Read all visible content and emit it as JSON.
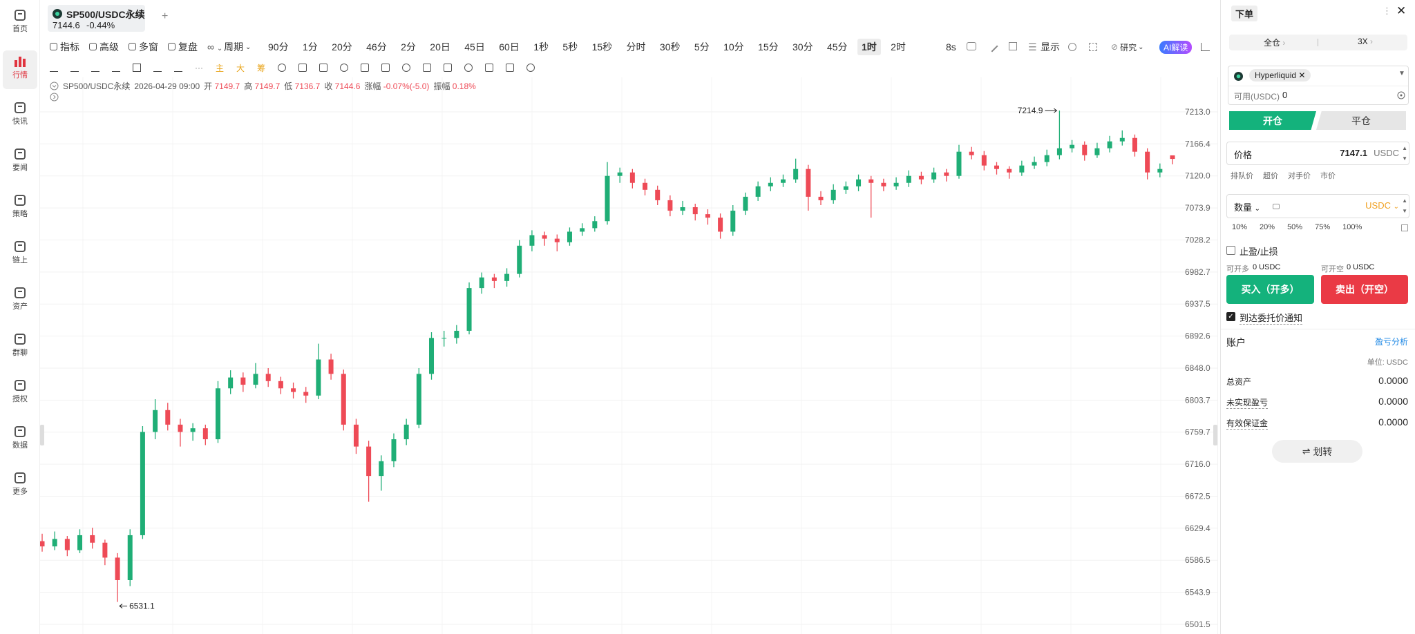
{
  "sidebar": [
    "首页",
    "行情",
    "快讯",
    "要闻",
    "策略",
    "链上",
    "资产",
    "群聊",
    "授权",
    "数据",
    "更多"
  ],
  "sidebar_active": 1,
  "tab": {
    "symbol": "SP500/USDC永续",
    "price": "7144.6",
    "change": "-0.44%",
    "add": "+"
  },
  "toolbar": {
    "tools": [
      "指标",
      "高级",
      "多窗",
      "复盘"
    ],
    "period": "周期",
    "periods": [
      "90分",
      "1分",
      "20分",
      "46分",
      "2分",
      "20日",
      "45日",
      "60日",
      "1秒",
      "5秒",
      "15秒",
      "分时",
      "30秒",
      "5分",
      "10分",
      "15分",
      "30分",
      "45分",
      "1时",
      "2时"
    ],
    "active_period": 18,
    "countdown": "8s",
    "display": "显示",
    "research": "研究",
    "ai": "AI解读"
  },
  "draw_toolbar": {
    "more": "···",
    "overlays": [
      "主",
      "大",
      "筹"
    ]
  },
  "chart_data": {
    "type": "candlestick",
    "title": "SP500/USDC永续",
    "time": "2026-04-29 09:00",
    "fields": {
      "open": "开",
      "high": "高",
      "low": "低",
      "close": "收",
      "change": "涨幅",
      "amplitude": "振幅"
    },
    "change": "-0.07%(-5.0)",
    "amplitude": "0.18%",
    "up_color": "#1fae76",
    "down_color": "#ee4a56",
    "candles": [
      [
        6612,
        6622,
        6598,
        6605
      ],
      [
        6605,
        6625,
        6600,
        6615
      ],
      [
        6615,
        6619,
        6592,
        6600
      ],
      [
        6600,
        6628,
        6596,
        6620
      ],
      [
        6620,
        6630,
        6602,
        6610
      ],
      [
        6610,
        6614,
        6580,
        6590
      ],
      [
        6590,
        6596,
        6531.1,
        6560
      ],
      [
        6560,
        6628,
        6552,
        6620
      ],
      [
        6620,
        6768,
        6615,
        6760
      ],
      [
        6760,
        6805,
        6750,
        6790
      ],
      [
        6790,
        6800,
        6762,
        6770
      ],
      [
        6770,
        6778,
        6740,
        6760
      ],
      [
        6760,
        6772,
        6748,
        6765
      ],
      [
        6765,
        6770,
        6742,
        6750
      ],
      [
        6750,
        6830,
        6745,
        6820
      ],
      [
        6820,
        6845,
        6812,
        6835
      ],
      [
        6835,
        6842,
        6815,
        6825
      ],
      [
        6825,
        6855,
        6820,
        6840
      ],
      [
        6840,
        6848,
        6822,
        6830
      ],
      [
        6830,
        6836,
        6812,
        6820
      ],
      [
        6820,
        6828,
        6806,
        6815
      ],
      [
        6815,
        6822,
        6800,
        6810
      ],
      [
        6810,
        6882,
        6805,
        6860
      ],
      [
        6860,
        6868,
        6832,
        6840
      ],
      [
        6840,
        6846,
        6762,
        6770
      ],
      [
        6770,
        6778,
        6730,
        6740
      ],
      [
        6740,
        6748,
        6665,
        6700
      ],
      [
        6700,
        6728,
        6680,
        6720
      ],
      [
        6720,
        6758,
        6712,
        6750
      ],
      [
        6750,
        6778,
        6742,
        6770
      ],
      [
        6770,
        6848,
        6765,
        6840
      ],
      [
        6840,
        6898,
        6832,
        6890
      ],
      [
        6890,
        6900,
        6878,
        6890
      ],
      [
        6890,
        6908,
        6882,
        6900
      ],
      [
        6900,
        6968,
        6895,
        6960
      ],
      [
        6960,
        6982,
        6952,
        6975
      ],
      [
        6975,
        6980,
        6960,
        6970
      ],
      [
        6970,
        6988,
        6962,
        6980
      ],
      [
        6980,
        7028,
        6975,
        7020
      ],
      [
        7020,
        7042,
        7012,
        7035
      ],
      [
        7035,
        7040,
        7020,
        7030
      ],
      [
        7030,
        7036,
        7012,
        7025
      ],
      [
        7025,
        7046,
        7020,
        7040
      ],
      [
        7040,
        7052,
        7034,
        7045
      ],
      [
        7045,
        7062,
        7040,
        7055
      ],
      [
        7055,
        7140,
        7050,
        7120
      ],
      [
        7120,
        7132,
        7110,
        7125
      ],
      [
        7125,
        7130,
        7102,
        7110
      ],
      [
        7110,
        7116,
        7092,
        7100
      ],
      [
        7100,
        7106,
        7078,
        7085
      ],
      [
        7085,
        7092,
        7062,
        7070
      ],
      [
        7070,
        7084,
        7064,
        7075
      ],
      [
        7075,
        7080,
        7056,
        7065
      ],
      [
        7065,
        7072,
        7050,
        7060
      ],
      [
        7060,
        7066,
        7030,
        7040
      ],
      [
        7040,
        7078,
        7034,
        7070
      ],
      [
        7070,
        7096,
        7064,
        7090
      ],
      [
        7090,
        7112,
        7084,
        7105
      ],
      [
        7105,
        7118,
        7098,
        7110
      ],
      [
        7110,
        7122,
        7104,
        7115
      ],
      [
        7115,
        7145,
        7110,
        7130
      ],
      [
        7130,
        7136,
        7070,
        7090
      ],
      [
        7090,
        7098,
        7078,
        7085
      ],
      [
        7085,
        7108,
        7080,
        7100
      ],
      [
        7100,
        7112,
        7094,
        7105
      ],
      [
        7105,
        7122,
        7098,
        7115
      ],
      [
        7115,
        7120,
        7060,
        7110
      ],
      [
        7110,
        7116,
        7098,
        7105
      ],
      [
        7105,
        7118,
        7100,
        7110
      ],
      [
        7110,
        7128,
        7104,
        7120
      ],
      [
        7120,
        7126,
        7108,
        7115
      ],
      [
        7115,
        7132,
        7110,
        7125
      ],
      [
        7125,
        7130,
        7112,
        7120
      ],
      [
        7120,
        7165,
        7116,
        7155
      ],
      [
        7155,
        7162,
        7144,
        7150
      ],
      [
        7150,
        7156,
        7128,
        7135
      ],
      [
        7135,
        7140,
        7122,
        7130
      ],
      [
        7130,
        7134,
        7116,
        7125
      ],
      [
        7125,
        7142,
        7120,
        7135
      ],
      [
        7135,
        7148,
        7130,
        7140
      ],
      [
        7140,
        7158,
        7134,
        7150
      ],
      [
        7150,
        7214.9,
        7144,
        7160
      ],
      [
        7160,
        7172,
        7154,
        7165
      ],
      [
        7165,
        7170,
        7142,
        7150
      ],
      [
        7150,
        7168,
        7146,
        7160
      ],
      [
        7160,
        7178,
        7154,
        7170
      ],
      [
        7170,
        7186,
        7164,
        7175
      ],
      [
        7175,
        7180,
        7148,
        7155
      ],
      [
        7155,
        7160,
        7115,
        7125
      ],
      [
        7125,
        7138,
        7118,
        7130
      ],
      [
        7149.7,
        7149.7,
        7136.7,
        7144.6
      ]
    ],
    "max_index": 81,
    "min_index": 6,
    "ylim": [
      6491.5,
      7260.6
    ],
    "log_scale": true,
    "grid": true,
    "yticks": [
      {
        "value": 7213.0,
        "label": "7213.0"
      },
      7166.4,
      {
        "value": 7120.0,
        "label": "7120.0"
      },
      7073.9,
      7028.2,
      6982.7,
      6937.5,
      6892.6,
      {
        "value": 6848.0,
        "label": "6848.0"
      },
      6803.7,
      6759.7,
      {
        "value": 6716.0,
        "label": "6716.0"
      },
      6672.5,
      6629.4,
      6586.5,
      6543.9,
      6501.5
    ]
  },
  "order_panel": {
    "title": "下单",
    "margin_mode": "全仓",
    "leverage": "3X",
    "exchange": "Hyperliquid",
    "available_label": "可用(USDC)",
    "available": "0",
    "tabs": [
      "开仓",
      "平仓"
    ],
    "price_label": "价格",
    "price": "7147.1",
    "price_unit": "USDC",
    "price_types": [
      "排队价",
      "超价",
      "对手价",
      "市价"
    ],
    "qty_label": "数量",
    "qty_unit": "USDC",
    "percents": [
      "10%",
      "20%",
      "50%",
      "75%",
      "100%"
    ],
    "tpsl": "止盈/止损",
    "max_long_label": "可开多",
    "max_long": "0 USDC",
    "max_short_label": "可开空",
    "max_short": "0 USDC",
    "buy": "买入（开多）",
    "sell": "卖出（开空）",
    "notify": "到达委托价通知",
    "account": {
      "title": "账户",
      "pnl_analysis": "盈亏分析",
      "unit": "单位: USDC",
      "rows": [
        [
          "总资产",
          "0.0000"
        ],
        [
          "未实现盈亏",
          "0.0000"
        ],
        [
          "有效保证金",
          "0.0000"
        ]
      ]
    },
    "transfer": "划转"
  }
}
